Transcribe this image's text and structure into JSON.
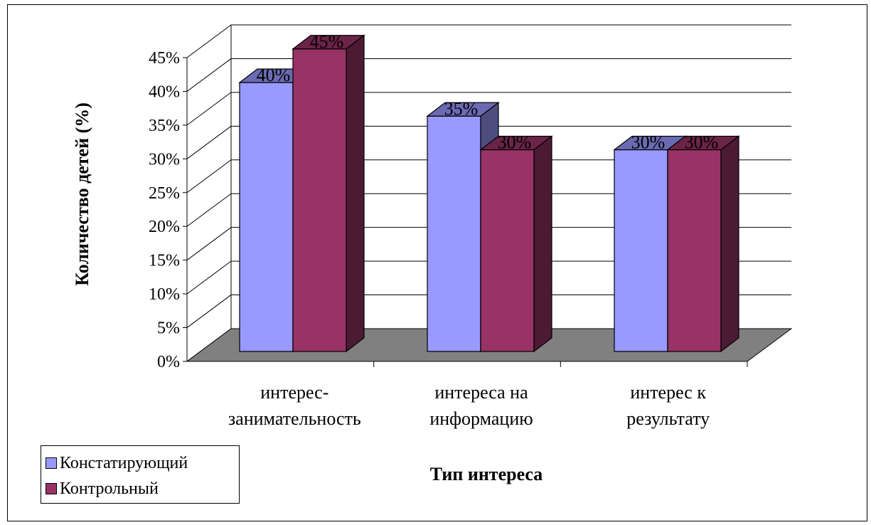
{
  "chart_data": {
    "type": "bar",
    "title": "",
    "xlabel": "Тип интереса",
    "ylabel": "Количество детей (%)",
    "categories": [
      [
        "интерес-",
        "занимательность"
      ],
      [
        "интереса на",
        "информацию"
      ],
      [
        "интерес к",
        "результату"
      ]
    ],
    "series": [
      {
        "name": "Констатирующий",
        "values": [
          40,
          35,
          30
        ],
        "labels": [
          "40%",
          "35%",
          "30%"
        ],
        "color": "#9999ff"
      },
      {
        "name": "Контрольный",
        "values": [
          45,
          30,
          30
        ],
        "labels": [
          "45%",
          "30%",
          "30%"
        ],
        "color": "#993366"
      }
    ],
    "ylim": [
      0,
      45
    ],
    "yticks": [
      "0%",
      "5%",
      "10%",
      "15%",
      "20%",
      "25%",
      "30%",
      "35%",
      "40%",
      "45%"
    ],
    "grid": true,
    "three_d": true,
    "floor_color": "#808080",
    "legend_placement": "bottom-left"
  }
}
